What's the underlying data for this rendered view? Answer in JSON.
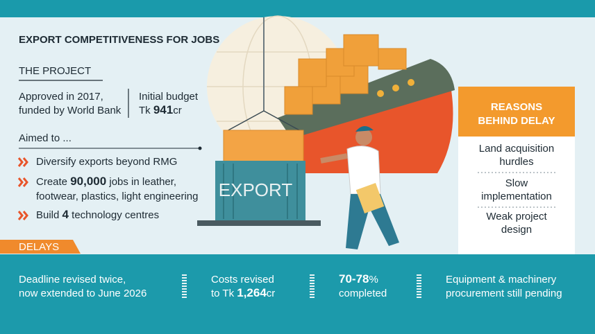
{
  "header": {
    "title": "EXPORT COMPETITIVENESS FOR JOBS"
  },
  "project": {
    "heading": "THE PROJECT",
    "approved": [
      "Approved in 2017,",
      "funded by World Bank"
    ],
    "budget": {
      "label": "Initial budget",
      "prefix": "Tk ",
      "amount": "941",
      "unit": "cr"
    }
  },
  "aims": {
    "heading": "Aimed to ...",
    "items": [
      {
        "lines": [
          [
            "Diversify exports beyond RMG"
          ]
        ]
      },
      {
        "lines": [
          [
            "Create ",
            "90,000",
            " jobs in leather,"
          ],
          [
            "footwear, plastics, light engineering"
          ]
        ]
      },
      {
        "lines": [
          [
            "Build ",
            "4",
            " technology centres"
          ]
        ]
      }
    ]
  },
  "illustration": {
    "container_label": "EXPORT"
  },
  "reasons": {
    "heading": [
      "REASONS",
      "BEHIND DELAY"
    ],
    "items": [
      [
        "Land acquisition",
        "hurdles"
      ],
      [
        "Slow",
        "implementation"
      ],
      [
        "Weak project",
        "design"
      ]
    ]
  },
  "delays": {
    "heading": "DELAYS",
    "items": [
      {
        "lines": [
          [
            "Deadline revised twice,"
          ],
          [
            "now extended to June 2026"
          ]
        ]
      },
      {
        "lines": [
          [
            "Costs revised"
          ],
          [
            "to Tk ",
            "1,264",
            "cr"
          ]
        ]
      },
      {
        "lines": [
          [
            "70-78",
            "%"
          ],
          [
            "completed"
          ]
        ]
      },
      {
        "lines": [
          [
            "Equipment & machinery"
          ],
          [
            "procurement still pending"
          ]
        ]
      }
    ]
  }
}
